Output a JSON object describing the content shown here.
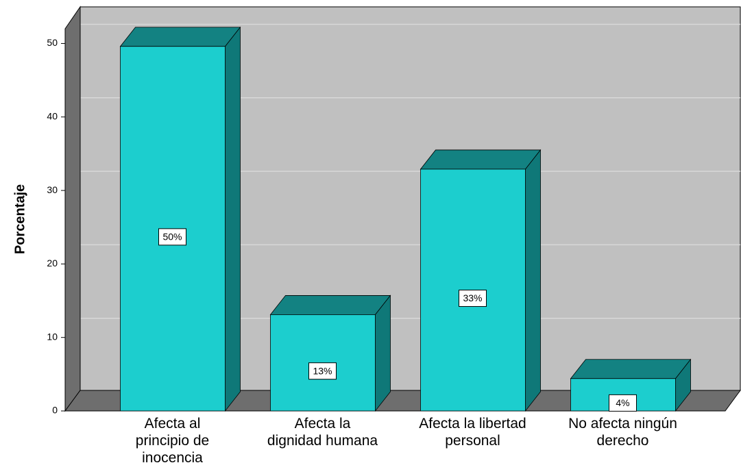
{
  "chart_data": {
    "type": "bar3d",
    "y_label": "Porcentaje",
    "categories": [
      "Afecta al\nprincipio de\ninocencia",
      "Afecta la\ndignidad humana",
      "Afecta la libertad\npersonal",
      "No afecta ningún\nderecho"
    ],
    "values": [
      49.6,
      13.1,
      32.9,
      4.4
    ],
    "value_labels": [
      "50%",
      "13%",
      "33%",
      "4%"
    ],
    "color": "#1ccece",
    "ylim": [
      0,
      52
    ],
    "yticks": [
      0,
      10,
      20,
      30,
      40,
      50
    ],
    "grid": true
  }
}
